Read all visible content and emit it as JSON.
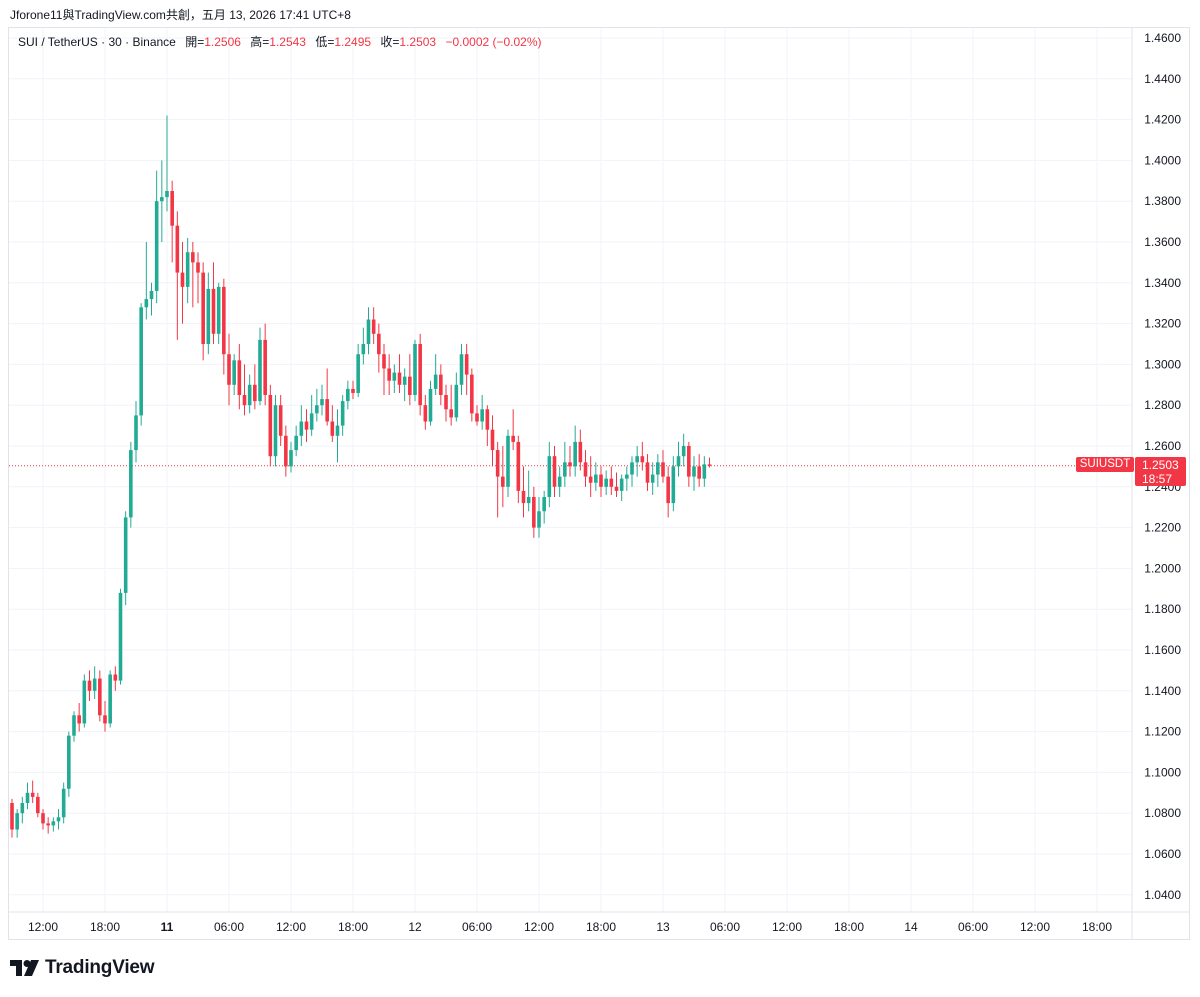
{
  "header": {
    "share_text": "Jforone11與TradingView.com共創，五月 13, 2026 17:41 UTC+8"
  },
  "legend": {
    "symbol": "SUI / TetherUS · 30 · Binance",
    "open_label": "開=",
    "open": "1.2506",
    "high_label": "高=",
    "high": "1.2543",
    "low_label": "低=",
    "low": "1.2495",
    "close_label": "收=",
    "close": "1.2503",
    "change": "−0.0002 (−0.02%)"
  },
  "price_tag": {
    "symbol": "SUIUSDT",
    "price": "1.2503",
    "countdown": "18:57"
  },
  "brand": {
    "name": "TradingView"
  },
  "colors": {
    "up": "#22ab94",
    "down": "#f23645",
    "grid": "#f0f3fa",
    "axis_text": "#131722"
  },
  "chart_data": {
    "type": "candlestick",
    "y_ticks": [
      "1.4600",
      "1.4400",
      "1.4200",
      "1.4000",
      "1.3800",
      "1.3600",
      "1.3400",
      "1.3200",
      "1.3000",
      "1.2800",
      "1.2600",
      "1.2400",
      "1.2200",
      "1.2000",
      "1.1800",
      "1.1600",
      "1.1400",
      "1.1200",
      "1.1000",
      "1.0800",
      "1.0600",
      "1.0400"
    ],
    "ylim": [
      1.03,
      1.47
    ],
    "x_ticks": [
      {
        "label": "12:00",
        "bold": false
      },
      {
        "label": "18:00",
        "bold": false
      },
      {
        "label": "11",
        "bold": true
      },
      {
        "label": "06:00",
        "bold": false
      },
      {
        "label": "12:00",
        "bold": false
      },
      {
        "label": "18:00",
        "bold": false
      },
      {
        "label": "12",
        "bold": false
      },
      {
        "label": "06:00",
        "bold": false
      },
      {
        "label": "12:00",
        "bold": false
      },
      {
        "label": "18:00",
        "bold": false
      },
      {
        "label": "13",
        "bold": false
      },
      {
        "label": "06:00",
        "bold": false
      },
      {
        "label": "12:00",
        "bold": false
      },
      {
        "label": "18:00",
        "bold": false
      },
      {
        "label": "14",
        "bold": false
      },
      {
        "label": "06:00",
        "bold": false
      },
      {
        "label": "12:00",
        "bold": false
      },
      {
        "label": "18:00",
        "bold": false
      }
    ],
    "last_price": 1.2503,
    "candles": [
      [
        1.085,
        1.087,
        1.068,
        1.072
      ],
      [
        1.072,
        1.082,
        1.068,
        1.08
      ],
      [
        1.08,
        1.088,
        1.075,
        1.085
      ],
      [
        1.085,
        1.095,
        1.082,
        1.09
      ],
      [
        1.09,
        1.096,
        1.085,
        1.088
      ],
      [
        1.088,
        1.09,
        1.078,
        1.08
      ],
      [
        1.08,
        1.082,
        1.072,
        1.075
      ],
      [
        1.075,
        1.078,
        1.07,
        1.074
      ],
      [
        1.074,
        1.078,
        1.071,
        1.076
      ],
      [
        1.076,
        1.082,
        1.072,
        1.078
      ],
      [
        1.078,
        1.095,
        1.075,
        1.092
      ],
      [
        1.092,
        1.12,
        1.088,
        1.118
      ],
      [
        1.118,
        1.13,
        1.115,
        1.128
      ],
      [
        1.128,
        1.134,
        1.12,
        1.124
      ],
      [
        1.124,
        1.148,
        1.122,
        1.145
      ],
      [
        1.145,
        1.15,
        1.135,
        1.14
      ],
      [
        1.14,
        1.152,
        1.136,
        1.146
      ],
      [
        1.146,
        1.15,
        1.125,
        1.128
      ],
      [
        1.128,
        1.135,
        1.12,
        1.124
      ],
      [
        1.124,
        1.15,
        1.122,
        1.148
      ],
      [
        1.148,
        1.152,
        1.14,
        1.145
      ],
      [
        1.145,
        1.19,
        1.143,
        1.188
      ],
      [
        1.188,
        1.228,
        1.182,
        1.225
      ],
      [
        1.225,
        1.262,
        1.22,
        1.258
      ],
      [
        1.258,
        1.282,
        1.252,
        1.275
      ],
      [
        1.275,
        1.33,
        1.27,
        1.328
      ],
      [
        1.328,
        1.36,
        1.322,
        1.332
      ],
      [
        1.332,
        1.34,
        1.324,
        1.336
      ],
      [
        1.336,
        1.395,
        1.33,
        1.38
      ],
      [
        1.38,
        1.4,
        1.36,
        1.382
      ],
      [
        1.382,
        1.422,
        1.375,
        1.385
      ],
      [
        1.385,
        1.39,
        1.35,
        1.368
      ],
      [
        1.368,
        1.375,
        1.312,
        1.345
      ],
      [
        1.345,
        1.36,
        1.32,
        1.338
      ],
      [
        1.338,
        1.362,
        1.33,
        1.355
      ],
      [
        1.355,
        1.36,
        1.328,
        1.35
      ],
      [
        1.35,
        1.355,
        1.33,
        1.345
      ],
      [
        1.345,
        1.35,
        1.302,
        1.31
      ],
      [
        1.31,
        1.345,
        1.305,
        1.337
      ],
      [
        1.337,
        1.35,
        1.31,
        1.315
      ],
      [
        1.315,
        1.34,
        1.31,
        1.338
      ],
      [
        1.338,
        1.342,
        1.295,
        1.305
      ],
      [
        1.305,
        1.315,
        1.28,
        1.29
      ],
      [
        1.29,
        1.305,
        1.285,
        1.302
      ],
      [
        1.302,
        1.31,
        1.278,
        1.285
      ],
      [
        1.285,
        1.3,
        1.275,
        1.28
      ],
      [
        1.28,
        1.295,
        1.276,
        1.29
      ],
      [
        1.29,
        1.3,
        1.278,
        1.282
      ],
      [
        1.282,
        1.318,
        1.28,
        1.312
      ],
      [
        1.312,
        1.32,
        1.28,
        1.285
      ],
      [
        1.285,
        1.29,
        1.25,
        1.255
      ],
      [
        1.255,
        1.285,
        1.25,
        1.28
      ],
      [
        1.28,
        1.285,
        1.26,
        1.265
      ],
      [
        1.265,
        1.27,
        1.245,
        1.25
      ],
      [
        1.25,
        1.262,
        1.247,
        1.258
      ],
      [
        1.258,
        1.27,
        1.255,
        1.265
      ],
      [
        1.265,
        1.28,
        1.26,
        1.272
      ],
      [
        1.272,
        1.278,
        1.262,
        1.268
      ],
      [
        1.268,
        1.285,
        1.265,
        1.276
      ],
      [
        1.276,
        1.288,
        1.272,
        1.28
      ],
      [
        1.28,
        1.29,
        1.275,
        1.283
      ],
      [
        1.283,
        1.298,
        1.27,
        1.272
      ],
      [
        1.272,
        1.28,
        1.262,
        1.265
      ],
      [
        1.265,
        1.278,
        1.252,
        1.27
      ],
      [
        1.27,
        1.285,
        1.265,
        1.282
      ],
      [
        1.282,
        1.292,
        1.278,
        1.288
      ],
      [
        1.288,
        1.292,
        1.283,
        1.286
      ],
      [
        1.286,
        1.31,
        1.284,
        1.305
      ],
      [
        1.305,
        1.318,
        1.3,
        1.31
      ],
      [
        1.31,
        1.328,
        1.305,
        1.322
      ],
      [
        1.322,
        1.328,
        1.31,
        1.315
      ],
      [
        1.315,
        1.32,
        1.296,
        1.305
      ],
      [
        1.305,
        1.31,
        1.285,
        1.298
      ],
      [
        1.298,
        1.305,
        1.285,
        1.292
      ],
      [
        1.292,
        1.3,
        1.286,
        1.296
      ],
      [
        1.296,
        1.305,
        1.286,
        1.29
      ],
      [
        1.29,
        1.298,
        1.282,
        1.294
      ],
      [
        1.294,
        1.305,
        1.28,
        1.285
      ],
      [
        1.285,
        1.312,
        1.282,
        1.31
      ],
      [
        1.31,
        1.315,
        1.275,
        1.28
      ],
      [
        1.28,
        1.285,
        1.268,
        1.272
      ],
      [
        1.272,
        1.292,
        1.27,
        1.288
      ],
      [
        1.288,
        1.305,
        1.285,
        1.295
      ],
      [
        1.295,
        1.3,
        1.28,
        1.285
      ],
      [
        1.285,
        1.29,
        1.272,
        1.278
      ],
      [
        1.278,
        1.29,
        1.27,
        1.274
      ],
      [
        1.274,
        1.296,
        1.272,
        1.29
      ],
      [
        1.29,
        1.31,
        1.285,
        1.305
      ],
      [
        1.305,
        1.31,
        1.285,
        1.295
      ],
      [
        1.295,
        1.298,
        1.272,
        1.276
      ],
      [
        1.276,
        1.28,
        1.27,
        1.272
      ],
      [
        1.272,
        1.285,
        1.268,
        1.278
      ],
      [
        1.278,
        1.28,
        1.26,
        1.268
      ],
      [
        1.268,
        1.275,
        1.25,
        1.258
      ],
      [
        1.258,
        1.262,
        1.225,
        1.245
      ],
      [
        1.245,
        1.26,
        1.23,
        1.24
      ],
      [
        1.24,
        1.268,
        1.235,
        1.265
      ],
      [
        1.265,
        1.278,
        1.258,
        1.262
      ],
      [
        1.262,
        1.265,
        1.232,
        1.238
      ],
      [
        1.238,
        1.25,
        1.225,
        1.232
      ],
      [
        1.232,
        1.248,
        1.228,
        1.235
      ],
      [
        1.235,
        1.24,
        1.215,
        1.22
      ],
      [
        1.22,
        1.235,
        1.215,
        1.228
      ],
      [
        1.228,
        1.238,
        1.222,
        1.235
      ],
      [
        1.235,
        1.262,
        1.23,
        1.255
      ],
      [
        1.255,
        1.26,
        1.235,
        1.24
      ],
      [
        1.24,
        1.25,
        1.235,
        1.245
      ],
      [
        1.245,
        1.262,
        1.24,
        1.252
      ],
      [
        1.252,
        1.26,
        1.245,
        1.25
      ],
      [
        1.25,
        1.27,
        1.245,
        1.262
      ],
      [
        1.262,
        1.268,
        1.248,
        1.252
      ],
      [
        1.252,
        1.258,
        1.24,
        1.245
      ],
      [
        1.245,
        1.255,
        1.235,
        1.242
      ],
      [
        1.242,
        1.252,
        1.238,
        1.246
      ],
      [
        1.246,
        1.25,
        1.235,
        1.24
      ],
      [
        1.24,
        1.248,
        1.236,
        1.244
      ],
      [
        1.244,
        1.25,
        1.236,
        1.24
      ],
      [
        1.24,
        1.247,
        1.235,
        1.238
      ],
      [
        1.238,
        1.246,
        1.233,
        1.244
      ],
      [
        1.244,
        1.25,
        1.238,
        1.246
      ],
      [
        1.246,
        1.255,
        1.24,
        1.252
      ],
      [
        1.252,
        1.26,
        1.245,
        1.255
      ],
      [
        1.255,
        1.262,
        1.248,
        1.252
      ],
      [
        1.252,
        1.256,
        1.238,
        1.242
      ],
      [
        1.242,
        1.252,
        1.236,
        1.246
      ],
      [
        1.246,
        1.256,
        1.24,
        1.252
      ],
      [
        1.252,
        1.258,
        1.242,
        1.245
      ],
      [
        1.245,
        1.25,
        1.225,
        1.232
      ],
      [
        1.232,
        1.255,
        1.228,
        1.25
      ],
      [
        1.25,
        1.262,
        1.245,
        1.255
      ],
      [
        1.255,
        1.266,
        1.25,
        1.26
      ],
      [
        1.26,
        1.262,
        1.24,
        1.245
      ],
      [
        1.245,
        1.255,
        1.238,
        1.25
      ],
      [
        1.25,
        1.256,
        1.24,
        1.244
      ],
      [
        1.244,
        1.255,
        1.24,
        1.251
      ],
      [
        1.251,
        1.2543,
        1.2495,
        1.2503
      ]
    ]
  }
}
